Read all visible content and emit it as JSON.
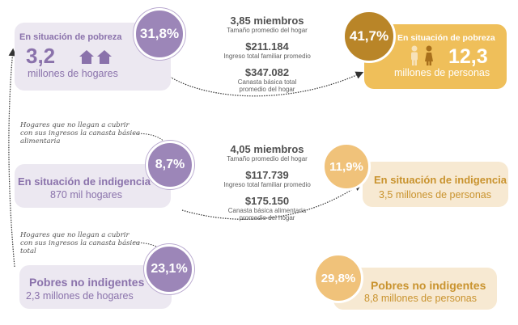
{
  "colors": {
    "purple": "#9c86b8",
    "purple_text": "#8a72ab",
    "gold": "#efbf5a",
    "gold_dark": "#b98528",
    "peach": "#f0c27a",
    "orange_text": "#c9932e"
  },
  "pobreza_hogares": {
    "title": "En situación de pobreza",
    "value": "3,2",
    "unit": "millones de hogares",
    "percent": "31,8%",
    "icon": "house-icon"
  },
  "pobreza_personas": {
    "title": "En situación de pobreza",
    "value": "12,3",
    "unit": "millones de personas",
    "percent": "41,7%",
    "icon": "people-icon"
  },
  "pobreza_stats": [
    {
      "value": "3,85 miembros",
      "label": "Tamaño promedio del hogar"
    },
    {
      "value": "$211.184",
      "label": "Ingreso total familiar promedio"
    },
    {
      "value": "$347.082",
      "label": "Canasta básica total promedio del hogar"
    }
  ],
  "indigencia_note": "Hogares que no llegan a cubrir con sus ingresos la canasta básica alimentaria",
  "indigencia_hogares": {
    "title": "En situación de indigencia",
    "unit": "870 mil hogares",
    "percent": "8,7%"
  },
  "indigencia_personas": {
    "title": "En situación de indigencia",
    "unit": "3,5 millones de personas",
    "percent": "11,9%"
  },
  "indigencia_stats": [
    {
      "value": "4,05 miembros",
      "label": "Tamaño promedio del hogar"
    },
    {
      "value": "$117.739",
      "label": "Ingreso total familiar promedio"
    },
    {
      "value": "$175.150",
      "label": "Canasta básica alimentaria promedio del hogar"
    }
  ],
  "pobres_note": "Hogares que no llegan a cubrir con sus ingresos la canasta básica total",
  "pobres_hogares": {
    "title": "Pobres no indigentes",
    "unit": "2,3 millones de hogares",
    "percent": "23,1%"
  },
  "pobres_personas": {
    "title": "Pobres no indigentes",
    "unit": "8,8 millones de personas",
    "percent": "29,8%"
  }
}
